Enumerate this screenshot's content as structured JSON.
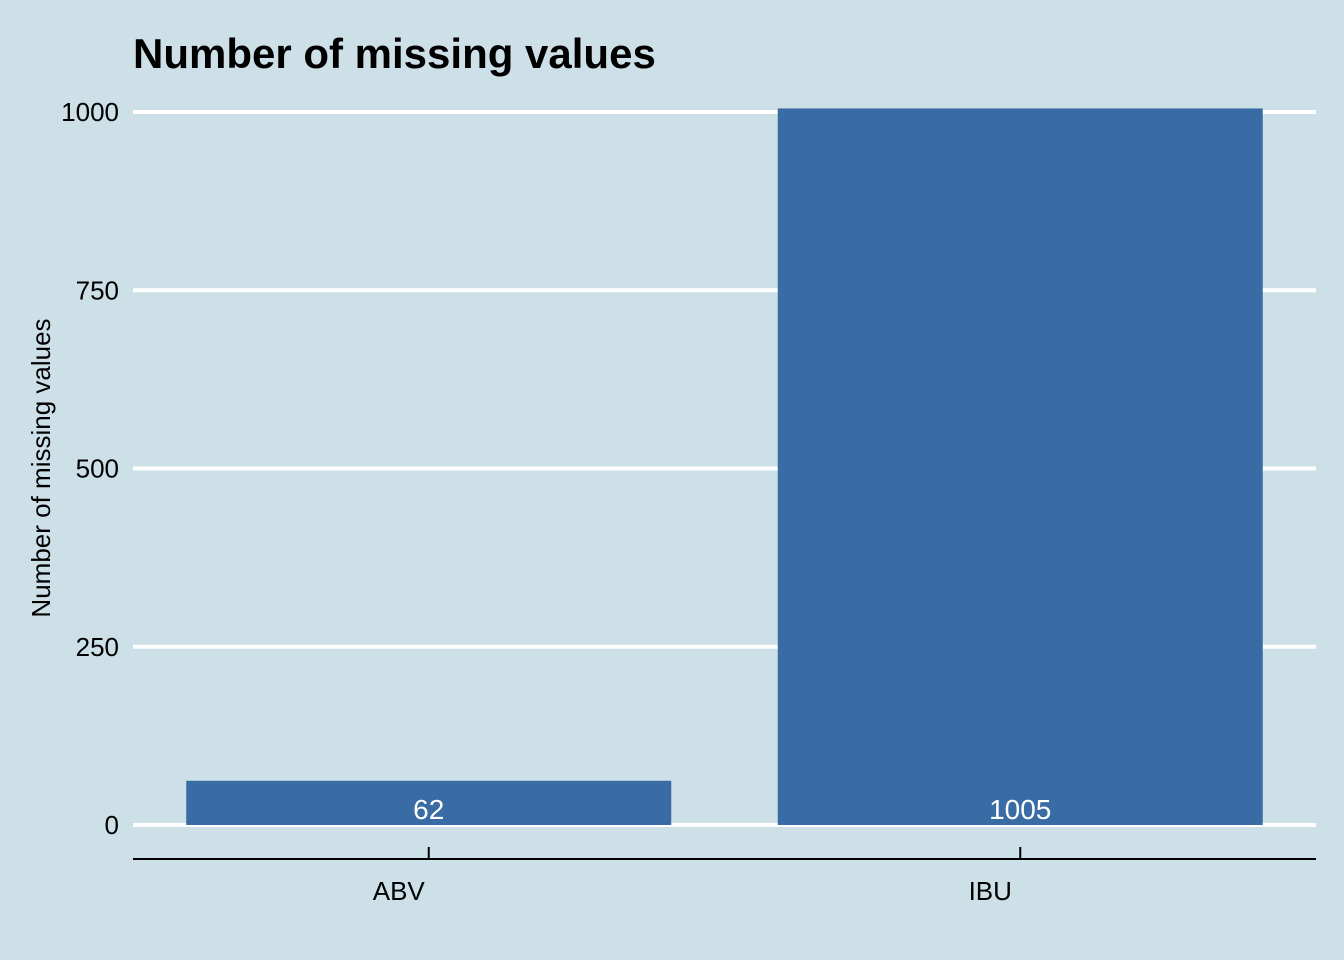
{
  "colors": {
    "background": "#cde0e7",
    "bar": "#396ca5",
    "grid": "#ffffff",
    "axis": "#000000",
    "data_label": "#ffffff"
  },
  "chart_data": {
    "type": "bar",
    "title": "Number of missing values",
    "xlabel": "",
    "ylabel": "Number of missing values",
    "categories": [
      "ABV",
      "IBU"
    ],
    "values": [
      62,
      1005
    ],
    "data_labels": [
      "62",
      "1005"
    ],
    "yticks": [
      0,
      250,
      500,
      750,
      1000
    ],
    "ytick_labels": [
      "0",
      "250",
      "500",
      "750",
      "1000"
    ],
    "ylim": [
      0,
      1000
    ],
    "grid": "horizontal",
    "legend": "none"
  }
}
